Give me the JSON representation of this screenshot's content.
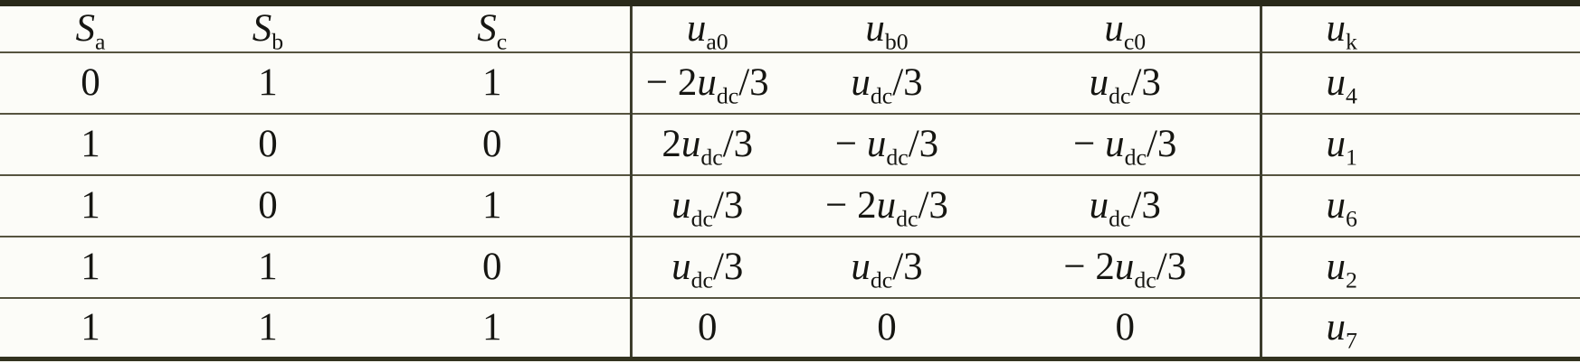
{
  "meta": {
    "description": "Switching states and output voltages table of a three-phase voltage source inverter",
    "colors": {
      "background": "#fcfcf8",
      "text": "#161612",
      "border_thick": "#29291a",
      "border_thin": "#565440",
      "border_vertical": "#3d3d2d"
    }
  },
  "table": {
    "headers": [
      "S_{a}",
      "S_{b}",
      "S_{c}",
      "u_{a0}",
      "u_{b0}",
      "u_{c0}",
      "u_{k}"
    ],
    "rows": [
      [
        "0",
        "1",
        "1",
        "− 2u_{dc}/3",
        "u_{dc}/3",
        "u_{dc}/3",
        "u_{4}"
      ],
      [
        "1",
        "0",
        "0",
        "2u_{dc}/3",
        "− u_{dc}/3",
        "− u_{dc}/3",
        "u_{1}"
      ],
      [
        "1",
        "0",
        "1",
        "u_{dc}/3",
        "− 2u_{dc}/3",
        "u_{dc}/3",
        "u_{6}"
      ],
      [
        "1",
        "1",
        "0",
        "u_{dc}/3",
        "u_{dc}/3",
        "− 2u_{dc}/3",
        "u_{2}"
      ],
      [
        "1",
        "1",
        "1",
        "0",
        "0",
        "0",
        "u_{7}"
      ]
    ]
  }
}
